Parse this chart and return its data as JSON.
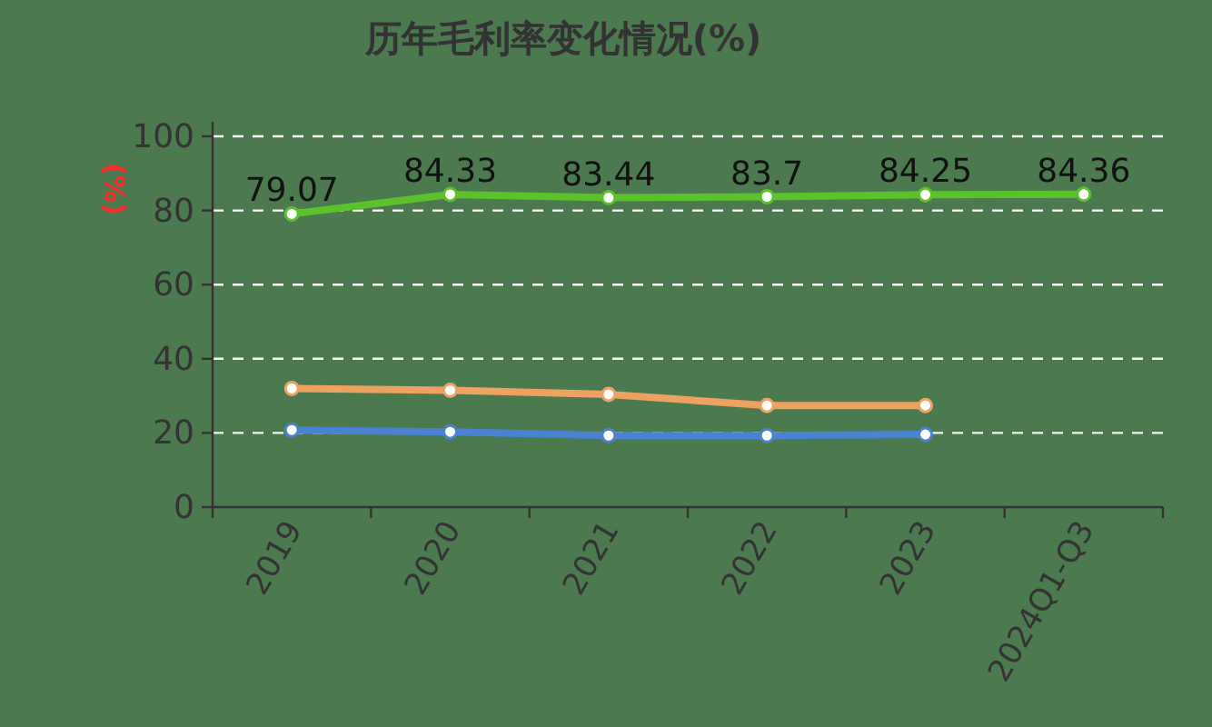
{
  "chart_data": {
    "type": "line",
    "title": "历年毛利率变化情况(%)",
    "ylabel": "(%)",
    "categories": [
      "2019",
      "2020",
      "2021",
      "2022",
      "2023",
      "2024Q1-Q3"
    ],
    "series": [
      {
        "color": "#5cc22c",
        "values": [
          79.07,
          84.33,
          83.44,
          83.7,
          84.25,
          84.36
        ],
        "value_labels": [
          "79.07",
          "84.33",
          "83.44",
          "83.7",
          "84.25",
          "84.36"
        ]
      },
      {
        "color": "#eea262",
        "values": [
          32,
          31.5,
          30.4,
          27.4,
          27.4,
          null
        ]
      },
      {
        "color": "#4a82d2",
        "values": [
          20.8,
          20.3,
          19.3,
          19.3,
          19.6,
          null
        ]
      }
    ],
    "ylim": [
      0,
      100
    ],
    "yticks": [
      0,
      20,
      40,
      60,
      80,
      100
    ],
    "grid": "y",
    "marker": "circle",
    "line_style": "solid"
  }
}
